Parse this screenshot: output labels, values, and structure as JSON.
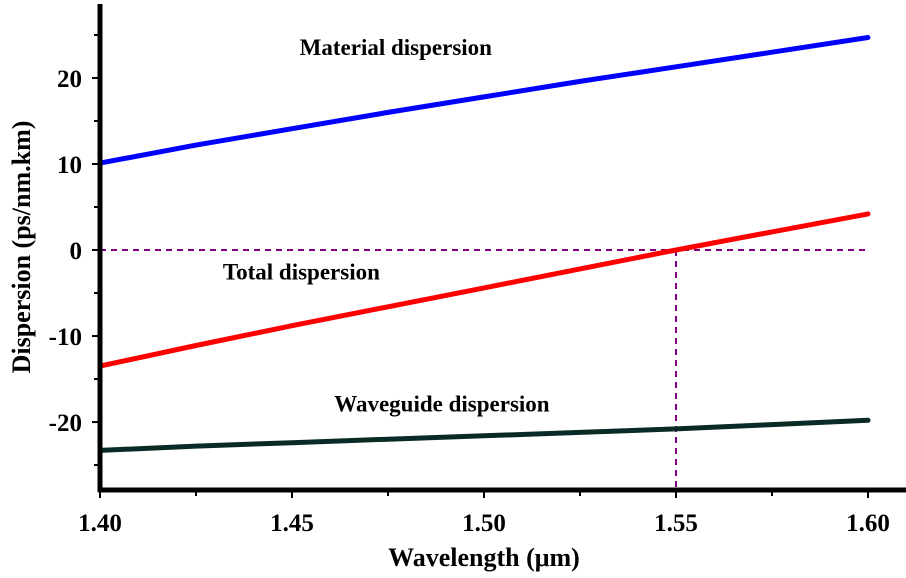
{
  "chart_data": {
    "type": "line",
    "title": "",
    "xlabel": "Wavelength (μm)",
    "ylabel": "Dispersion (ps/nm.km)",
    "xlim": [
      1.4,
      1.6
    ],
    "ylim": [
      -27.9,
      28.6
    ],
    "grid": false,
    "legend": "none (inline curve annotations)",
    "x_ticks": [
      {
        "value": 1.4,
        "label": "1.40"
      },
      {
        "value": 1.45,
        "label": "1.45"
      },
      {
        "value": 1.5,
        "label": "1.50"
      },
      {
        "value": 1.55,
        "label": "1.55"
      },
      {
        "value": 1.6,
        "label": "1.60"
      }
    ],
    "x_minor_ticks": [
      1.425,
      1.475,
      1.525,
      1.575
    ],
    "y_ticks": [
      {
        "value": 20,
        "label": "20"
      },
      {
        "value": 10,
        "label": "10"
      },
      {
        "value": 0,
        "label": "0"
      },
      {
        "value": -10,
        "label": "-10"
      },
      {
        "value": -20,
        "label": "-20"
      }
    ],
    "y_minor_ticks": [
      25,
      15,
      5,
      -5,
      -15,
      -25
    ],
    "x": [
      1.4,
      1.425,
      1.45,
      1.475,
      1.5,
      1.525,
      1.55,
      1.575,
      1.6
    ],
    "series": [
      {
        "name": "Material dispersion",
        "color": "#0000ff",
        "values": [
          10.1,
          12.2,
          14.1,
          16.0,
          17.8,
          19.6,
          21.3,
          23.0,
          24.7
        ]
      },
      {
        "name": "Total dispersion",
        "color": "#ff0000",
        "values": [
          -13.5,
          -11.1,
          -8.8,
          -6.6,
          -4.4,
          -2.2,
          0.0,
          2.1,
          4.2
        ]
      },
      {
        "name": "Waveguide dispersion",
        "color": "#0a2a26",
        "values": [
          -23.3,
          -22.8,
          -22.4,
          -22.0,
          -21.6,
          -21.2,
          -20.8,
          -20.3,
          -19.8
        ]
      }
    ],
    "annotations": [
      {
        "text": "Material dispersion",
        "x": 1.452,
        "y": 22.7
      },
      {
        "text": "Total dispersion",
        "x": 1.432,
        "y": -3.4
      },
      {
        "text": "Waveguide dispersion",
        "x": 1.461,
        "y": -18.8
      }
    ],
    "reference_lines": [
      {
        "type": "horizontal",
        "y": 0,
        "x_from": 1.4,
        "x_to": 1.6,
        "color": "#800080",
        "style": "dashed"
      },
      {
        "type": "vertical",
        "x": 1.55,
        "y_from": -27.9,
        "y_to": 0,
        "color": "#800080",
        "style": "dashed"
      }
    ]
  }
}
